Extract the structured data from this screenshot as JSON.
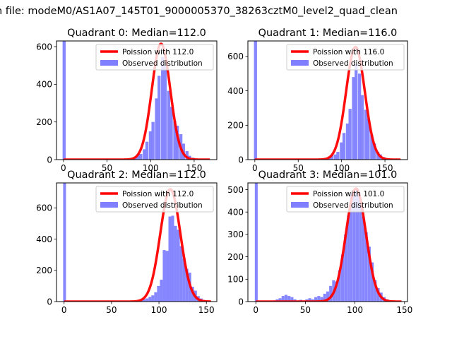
{
  "suptitle": "n file: modeM0/AS1A07_145T01_9000005370_38263cztM0_level2_quad_clean",
  "colors": {
    "poisson_line": "#ff0000",
    "observed_bar": "#7f7fff"
  },
  "chart_data": [
    {
      "type": "bar",
      "title": "Quadrant 0: Median=112.0",
      "median": 112.0,
      "xlim": [
        -8,
        176
      ],
      "ylim": [
        0,
        630
      ],
      "xticks": [
        0,
        50,
        100,
        150
      ],
      "yticks": [
        0,
        200,
        400,
        600
      ],
      "legend": {
        "placement": "top-right",
        "entries": [
          {
            "label": "Poission with 112.0",
            "kind": "line"
          },
          {
            "label": "Observed distribution",
            "kind": "patch"
          }
        ]
      },
      "bin_width": 3.5,
      "bins": [
        {
          "x": -1,
          "y": 630
        },
        {
          "x": 81,
          "y": 15
        },
        {
          "x": 84,
          "y": 25
        },
        {
          "x": 87,
          "y": 30
        },
        {
          "x": 91,
          "y": 55
        },
        {
          "x": 94,
          "y": 95
        },
        {
          "x": 98,
          "y": 150
        },
        {
          "x": 101,
          "y": 200
        },
        {
          "x": 105,
          "y": 325
        },
        {
          "x": 108,
          "y": 445
        },
        {
          "x": 112,
          "y": 545
        },
        {
          "x": 115,
          "y": 500
        },
        {
          "x": 119,
          "y": 365
        },
        {
          "x": 122,
          "y": 280
        },
        {
          "x": 126,
          "y": 205
        },
        {
          "x": 129,
          "y": 180
        },
        {
          "x": 133,
          "y": 135
        },
        {
          "x": 136,
          "y": 85
        },
        {
          "x": 140,
          "y": 45
        },
        {
          "x": 143,
          "y": 20
        },
        {
          "x": 147,
          "y": 10
        }
      ],
      "curve": {
        "x_min": 0,
        "x_max": 168,
        "lambda": 112.0,
        "peak": 615
      }
    },
    {
      "type": "bar",
      "title": "Quadrant 1: Median=116.0",
      "median": 116.0,
      "xlim": [
        -8,
        176
      ],
      "ylim": [
        0,
        690
      ],
      "xticks": [
        0,
        50,
        100,
        150
      ],
      "yticks": [
        0,
        200,
        400,
        600
      ],
      "legend": {
        "placement": "top-right",
        "entries": [
          {
            "label": "Poission with 116.0",
            "kind": "line"
          },
          {
            "label": "Observed distribution",
            "kind": "patch"
          }
        ]
      },
      "bin_width": 3.5,
      "bins": [
        {
          "x": -1,
          "y": 690
        },
        {
          "x": 84,
          "y": 15
        },
        {
          "x": 87,
          "y": 25
        },
        {
          "x": 91,
          "y": 30
        },
        {
          "x": 94,
          "y": 45
        },
        {
          "x": 98,
          "y": 100
        },
        {
          "x": 101,
          "y": 155
        },
        {
          "x": 105,
          "y": 210
        },
        {
          "x": 108,
          "y": 295
        },
        {
          "x": 112,
          "y": 480
        },
        {
          "x": 115,
          "y": 555
        },
        {
          "x": 119,
          "y": 500
        },
        {
          "x": 122,
          "y": 375
        },
        {
          "x": 126,
          "y": 290
        },
        {
          "x": 129,
          "y": 240
        },
        {
          "x": 133,
          "y": 145
        },
        {
          "x": 136,
          "y": 95
        },
        {
          "x": 140,
          "y": 45
        },
        {
          "x": 143,
          "y": 30
        },
        {
          "x": 147,
          "y": 15
        },
        {
          "x": 150,
          "y": 5
        }
      ],
      "curve": {
        "x_min": 0,
        "x_max": 168,
        "lambda": 116.0,
        "peak": 655
      }
    },
    {
      "type": "bar",
      "title": "Quadrant 2: Median=112.0",
      "median": 112.0,
      "xlim": [
        -8,
        161
      ],
      "ylim": [
        0,
        760
      ],
      "xticks": [
        0,
        50,
        100,
        150
      ],
      "yticks": [
        0,
        200,
        400,
        600
      ],
      "legend": {
        "placement": "top-right",
        "entries": [
          {
            "label": "Poission with 112.0",
            "kind": "line"
          },
          {
            "label": "Observed distribution",
            "kind": "patch"
          }
        ]
      },
      "bin_width": 3.0,
      "bins": [
        {
          "x": -1,
          "y": 760
        },
        {
          "x": 80,
          "y": 10
        },
        {
          "x": 83,
          "y": 15
        },
        {
          "x": 86,
          "y": 20
        },
        {
          "x": 89,
          "y": 30
        },
        {
          "x": 92,
          "y": 40
        },
        {
          "x": 95,
          "y": 60
        },
        {
          "x": 98,
          "y": 100
        },
        {
          "x": 101,
          "y": 140
        },
        {
          "x": 104,
          "y": 330
        },
        {
          "x": 107,
          "y": 325
        },
        {
          "x": 110,
          "y": 545
        },
        {
          "x": 113,
          "y": 550
        },
        {
          "x": 116,
          "y": 485
        },
        {
          "x": 119,
          "y": 460
        },
        {
          "x": 122,
          "y": 355
        },
        {
          "x": 125,
          "y": 275
        },
        {
          "x": 128,
          "y": 210
        },
        {
          "x": 131,
          "y": 185
        },
        {
          "x": 134,
          "y": 95
        },
        {
          "x": 137,
          "y": 70
        },
        {
          "x": 140,
          "y": 35
        },
        {
          "x": 143,
          "y": 20
        },
        {
          "x": 146,
          "y": 10
        }
      ],
      "curve": {
        "x_min": 0,
        "x_max": 155,
        "lambda": 112.0,
        "peak": 720
      }
    },
    {
      "type": "bar",
      "title": "Quadrant 3: Median=101.0",
      "median": 101.0,
      "xlim": [
        -8,
        153
      ],
      "ylim": [
        0,
        530
      ],
      "xticks": [
        0,
        50,
        100,
        150
      ],
      "yticks": [
        0,
        100,
        200,
        300,
        400,
        500
      ],
      "legend": {
        "placement": "top-right",
        "entries": [
          {
            "label": "Poission with 101.0",
            "kind": "line"
          },
          {
            "label": "Observed distribution",
            "kind": "patch"
          }
        ]
      },
      "bin_width": 2.9,
      "bins": [
        {
          "x": -1,
          "y": 530
        },
        {
          "x": 17,
          "y": 5
        },
        {
          "x": 20,
          "y": 10
        },
        {
          "x": 23,
          "y": 15
        },
        {
          "x": 26,
          "y": 25
        },
        {
          "x": 29,
          "y": 30
        },
        {
          "x": 32,
          "y": 25
        },
        {
          "x": 35,
          "y": 20
        },
        {
          "x": 38,
          "y": 10
        },
        {
          "x": 41,
          "y": 5
        },
        {
          "x": 44,
          "y": 8
        },
        {
          "x": 47,
          "y": 5
        },
        {
          "x": 50,
          "y": 10
        },
        {
          "x": 53,
          "y": 15
        },
        {
          "x": 56,
          "y": 10
        },
        {
          "x": 59,
          "y": 20
        },
        {
          "x": 62,
          "y": 25
        },
        {
          "x": 65,
          "y": 20
        },
        {
          "x": 68,
          "y": 35
        },
        {
          "x": 71,
          "y": 45
        },
        {
          "x": 74,
          "y": 70
        },
        {
          "x": 77,
          "y": 95
        },
        {
          "x": 80,
          "y": 90
        },
        {
          "x": 83,
          "y": 140
        },
        {
          "x": 86,
          "y": 210
        },
        {
          "x": 89,
          "y": 300
        },
        {
          "x": 92,
          "y": 385
        },
        {
          "x": 95,
          "y": 485
        },
        {
          "x": 98,
          "y": 490
        },
        {
          "x": 101,
          "y": 505
        },
        {
          "x": 104,
          "y": 460
        },
        {
          "x": 107,
          "y": 380
        },
        {
          "x": 110,
          "y": 310
        },
        {
          "x": 113,
          "y": 245
        },
        {
          "x": 116,
          "y": 175
        },
        {
          "x": 119,
          "y": 95
        },
        {
          "x": 122,
          "y": 60
        },
        {
          "x": 125,
          "y": 40
        },
        {
          "x": 128,
          "y": 20
        },
        {
          "x": 131,
          "y": 10
        }
      ],
      "curve": {
        "x_min": 0,
        "x_max": 147,
        "lambda": 101.0,
        "peak": 505
      }
    }
  ]
}
